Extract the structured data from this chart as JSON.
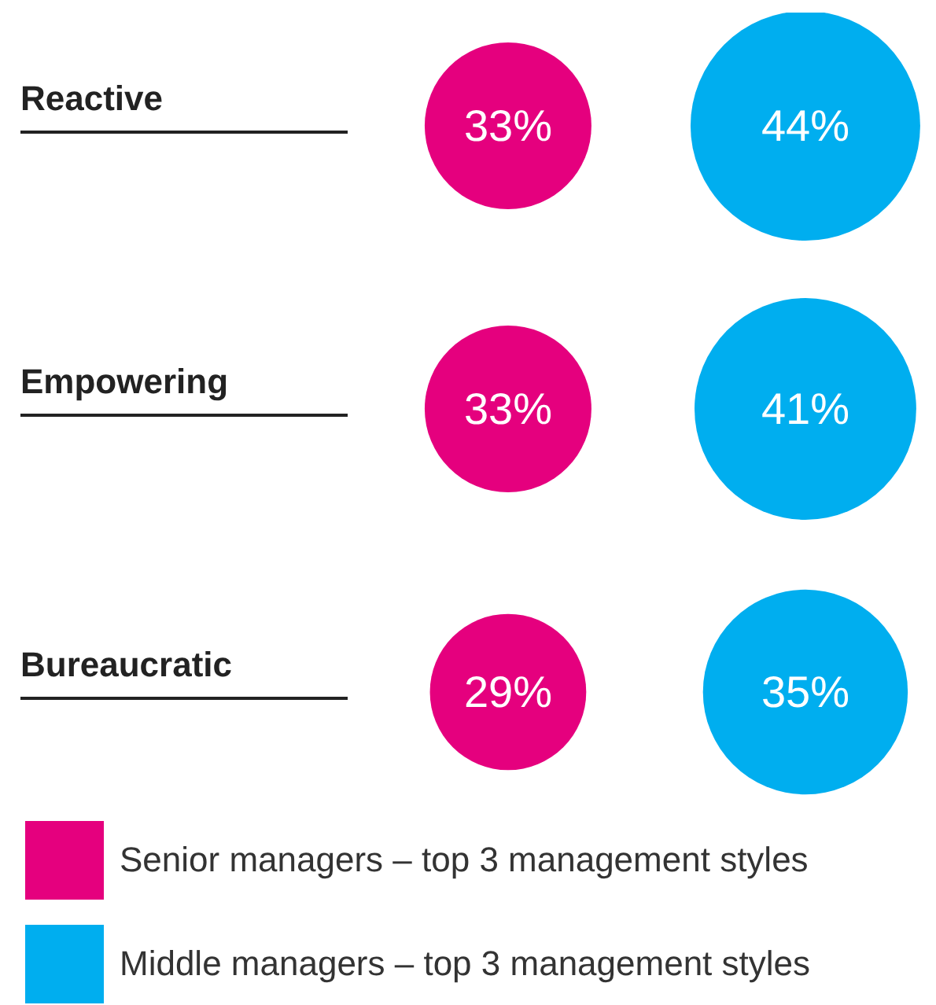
{
  "chart_data": {
    "type": "other",
    "categories": [
      "Reactive",
      "Empowering",
      "Bureaucratic"
    ],
    "legend": "bottom",
    "series": [
      {
        "name": "Senior managers – top 3 management styles",
        "color": "#e5007e",
        "values": [
          33,
          33,
          29
        ],
        "value_labels": [
          "33%",
          "33%",
          "29%"
        ]
      },
      {
        "name": "Middle managers – top 3 management styles",
        "color": "#00aeef",
        "values": [
          44,
          41,
          35
        ],
        "value_labels": [
          "44%",
          "41%",
          "35%"
        ]
      }
    ]
  }
}
